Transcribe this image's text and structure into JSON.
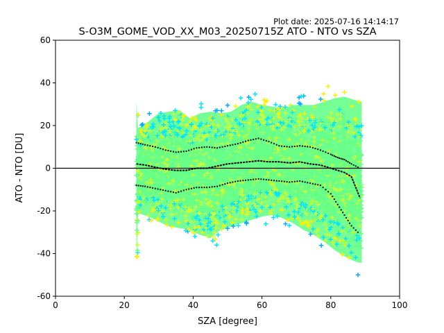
{
  "figure": {
    "plot_date": "Plot date: 2025-07-16 14:14:17"
  },
  "chart_data": {
    "type": "scatter",
    "title": "S-O3M_GOME_VOD_XX_M03_20250715Z ATO - NTO vs SZA",
    "xlabel": "SZA [degree]",
    "ylabel": "ATO - NTO [DU]",
    "xlim": [
      0,
      100
    ],
    "ylim": [
      -60,
      60
    ],
    "xticks": [
      0,
      20,
      40,
      60,
      80,
      100
    ],
    "yticks": [
      -60,
      -40,
      -20,
      0,
      20,
      40,
      60
    ],
    "grid": false,
    "legend": "none",
    "reference_line_y": 0,
    "marker": "+",
    "colors": {
      "density_low": "#0000ff",
      "density_mid_low": "#00aaff",
      "density_mid": "#00e5ff",
      "density_center": "#66ff88",
      "density_mid_high": "#ccff33",
      "density_high": "#ffee00",
      "median_line": "#000000",
      "spread_line": "#000000"
    },
    "point_cloud": {
      "sza_range": [
        23.5,
        89
      ],
      "bands": [
        {
          "x": 24,
          "lo": -27,
          "hi": 24
        },
        {
          "x": 27,
          "lo": -29,
          "hi": 28
        },
        {
          "x": 30,
          "lo": -32,
          "hi": 33
        },
        {
          "x": 33,
          "lo": -35,
          "hi": 34
        },
        {
          "x": 36,
          "lo": -36,
          "hi": 35
        },
        {
          "x": 39,
          "lo": -37,
          "hi": 30
        },
        {
          "x": 42,
          "lo": -40,
          "hi": 33
        },
        {
          "x": 45,
          "lo": -42,
          "hi": 34
        },
        {
          "x": 48,
          "lo": -37,
          "hi": 33
        },
        {
          "x": 51,
          "lo": -35,
          "hi": 34
        },
        {
          "x": 54,
          "lo": -33,
          "hi": 38
        },
        {
          "x": 57,
          "lo": -31,
          "hi": 40
        },
        {
          "x": 60,
          "lo": -29,
          "hi": 38
        },
        {
          "x": 63,
          "lo": -28,
          "hi": 37
        },
        {
          "x": 66,
          "lo": -30,
          "hi": 36
        },
        {
          "x": 69,
          "lo": -33,
          "hi": 38
        },
        {
          "x": 72,
          "lo": -37,
          "hi": 38
        },
        {
          "x": 75,
          "lo": -40,
          "hi": 38
        },
        {
          "x": 78,
          "lo": -44,
          "hi": 40
        },
        {
          "x": 81,
          "lo": -49,
          "hi": 42
        },
        {
          "x": 84,
          "lo": -53,
          "hi": 43
        },
        {
          "x": 87,
          "lo": -56,
          "hi": 41
        },
        {
          "x": 89,
          "lo": -57,
          "hi": 40
        }
      ]
    },
    "median": {
      "x": [
        23.5,
        26,
        29,
        32,
        35,
        38,
        41,
        44,
        47,
        50,
        53,
        56,
        59,
        62,
        65,
        68,
        71,
        74,
        77,
        80,
        82,
        84,
        86,
        88.5
      ],
      "y": [
        2,
        1.5,
        0.5,
        -0.5,
        -1,
        -1,
        0,
        0,
        1,
        2,
        2.5,
        3,
        3.5,
        3,
        3,
        2.5,
        3,
        2,
        1.5,
        0,
        -1,
        -2,
        -4,
        -14
      ]
    },
    "upper_spread": {
      "x": [
        23.5,
        26,
        29,
        32,
        35,
        38,
        41,
        44,
        47,
        50,
        53,
        56,
        59,
        62,
        65,
        68,
        71,
        74,
        77,
        80,
        82,
        84,
        86,
        88.5
      ],
      "y": [
        12,
        11,
        10,
        8.5,
        7.5,
        8,
        9.5,
        10,
        9.5,
        10.5,
        11.5,
        13,
        14,
        12.5,
        10.5,
        10,
        10.5,
        10,
        8.5,
        6.5,
        5,
        4,
        2,
        0
      ]
    },
    "lower_spread": {
      "x": [
        23.5,
        26,
        29,
        32,
        35,
        38,
        41,
        44,
        47,
        50,
        53,
        56,
        59,
        62,
        65,
        68,
        71,
        74,
        77,
        80,
        82,
        84,
        86,
        88.5
      ],
      "y": [
        -8,
        -8.5,
        -9.5,
        -10.5,
        -11.5,
        -10,
        -9,
        -9,
        -8.5,
        -7,
        -6,
        -5.5,
        -5,
        -5.5,
        -6,
        -6.5,
        -6,
        -7,
        -8,
        -12,
        -17,
        -22,
        -27,
        -31
      ]
    }
  }
}
